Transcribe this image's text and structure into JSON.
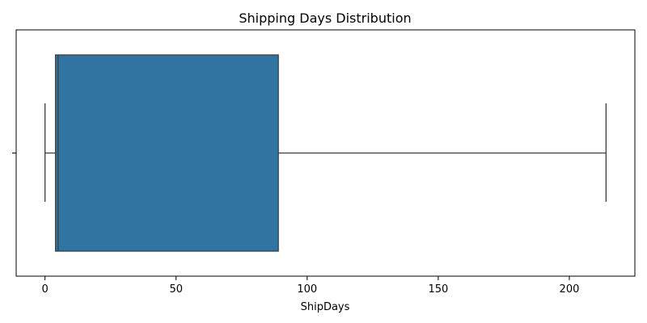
{
  "chart_data": {
    "type": "box",
    "title": "Shipping Days Distribution",
    "xlabel": "ShipDays",
    "ylabel": "",
    "orientation": "horizontal",
    "xlim": [
      -11,
      225
    ],
    "x_ticks": [
      0,
      50,
      100,
      150,
      200
    ],
    "box": {
      "whisker_low": 0,
      "q1": 4,
      "median": 5,
      "q3": 89,
      "whisker_high": 214,
      "color": "#3274a1",
      "edge_color": "#3f3f3f"
    },
    "grid": false,
    "legend": "none"
  }
}
